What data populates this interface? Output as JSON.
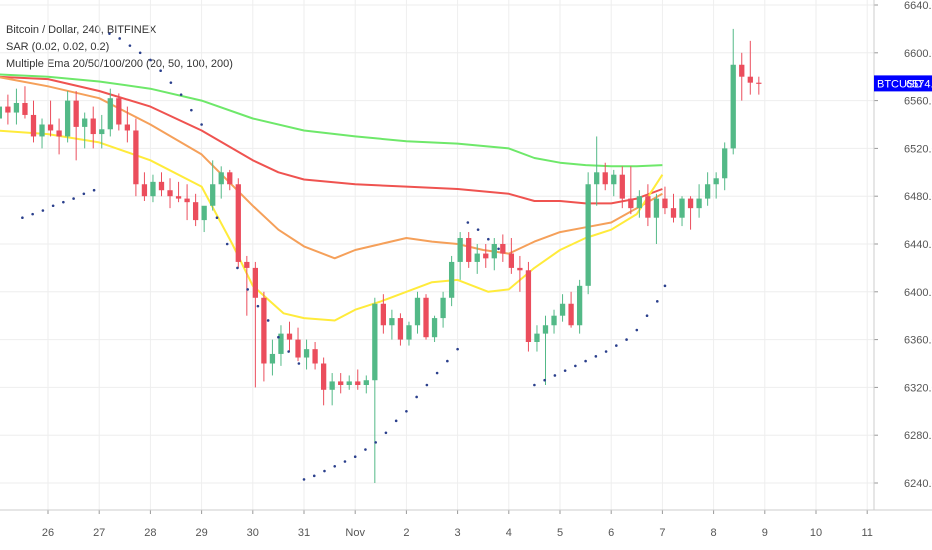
{
  "legend": {
    "symbol_line": "Bitcoin / Dollar, 240, BITFINEX",
    "sar_line": "SAR (0.02, 0.02, 0.2)",
    "ema_line": "Multiple Ema 20/50/100/200 (20, 50, 100, 200)"
  },
  "price_tag": {
    "symbol": "BTCUSD",
    "price": "6574.4",
    "value": 6574.4
  },
  "colors": {
    "up": "#53b987",
    "down": "#eb4d5c",
    "sar": "#2a3f8c",
    "ema20": "#ffeb3b",
    "ema50": "#f5a05a",
    "ema100": "#ef5350",
    "ema200": "#6ee86a",
    "price_tag_bg": "#0000ff",
    "grid": "#eeeeee"
  },
  "chart_data": {
    "type": "candlestick",
    "ylim": [
      6225,
      6645
    ],
    "xlim": [
      25.0,
      11.2
    ],
    "y_ticks": [
      "6640.0",
      "6600.0",
      "6560.0",
      "6520.0",
      "6480.0",
      "6440.0",
      "6400.0",
      "6360.0",
      "6320.0",
      "6280.0",
      "6240.0"
    ],
    "y_tick_values": [
      6640,
      6600,
      6560,
      6520,
      6480,
      6440,
      6400,
      6360,
      6320,
      6280,
      6240
    ],
    "x_ticks": [
      {
        "label": "26",
        "x": 26
      },
      {
        "label": "27",
        "x": 27
      },
      {
        "label": "28",
        "x": 28
      },
      {
        "label": "29",
        "x": 29
      },
      {
        "label": "30",
        "x": 30
      },
      {
        "label": "31",
        "x": 31
      },
      {
        "label": "Nov",
        "x": 32
      },
      {
        "label": "2",
        "x": 33
      },
      {
        "label": "3",
        "x": 34
      },
      {
        "label": "4",
        "x": 35
      },
      {
        "label": "5",
        "x": 36
      },
      {
        "label": "6",
        "x": 37
      },
      {
        "label": "7",
        "x": 38
      },
      {
        "label": "8",
        "x": 39
      },
      {
        "label": "9",
        "x": 40
      },
      {
        "label": "10",
        "x": 41
      },
      {
        "label": "11",
        "x": 42
      }
    ],
    "candles": [
      [
        6545,
        6560,
        6528,
        6555
      ],
      [
        6555,
        6565,
        6540,
        6550
      ],
      [
        6550,
        6570,
        6540,
        6558
      ],
      [
        6558,
        6572,
        6545,
        6548
      ],
      [
        6548,
        6560,
        6525,
        6530
      ],
      [
        6530,
        6545,
        6520,
        6540
      ],
      [
        6540,
        6560,
        6530,
        6535
      ],
      [
        6535,
        6545,
        6515,
        6530
      ],
      [
        6530,
        6568,
        6525,
        6560
      ],
      [
        6560,
        6568,
        6510,
        6538
      ],
      [
        6538,
        6550,
        6520,
        6545
      ],
      [
        6545,
        6555,
        6520,
        6532
      ],
      [
        6532,
        6548,
        6520,
        6536
      ],
      [
        6536,
        6570,
        6530,
        6562
      ],
      [
        6562,
        6566,
        6535,
        6540
      ],
      [
        6540,
        6555,
        6525,
        6535
      ],
      [
        6535,
        6545,
        6480,
        6490
      ],
      [
        6490,
        6500,
        6476,
        6480
      ],
      [
        6480,
        6498,
        6475,
        6492
      ],
      [
        6492,
        6500,
        6480,
        6485
      ],
      [
        6485,
        6495,
        6470,
        6480
      ],
      [
        6480,
        6492,
        6475,
        6478
      ],
      [
        6478,
        6490,
        6460,
        6475
      ],
      [
        6475,
        6482,
        6455,
        6460
      ],
      [
        6460,
        6470,
        6450,
        6472
      ],
      [
        6472,
        6510,
        6468,
        6490
      ],
      [
        6490,
        6505,
        6478,
        6500
      ],
      [
        6500,
        6502,
        6485,
        6490
      ],
      [
        6490,
        6495,
        6420,
        6425
      ],
      [
        6425,
        6430,
        6380,
        6420
      ],
      [
        6420,
        6425,
        6320,
        6395
      ],
      [
        6395,
        6400,
        6325,
        6340
      ],
      [
        6340,
        6360,
        6330,
        6348
      ],
      [
        6348,
        6372,
        6338,
        6365
      ],
      [
        6365,
        6375,
        6350,
        6360
      ],
      [
        6360,
        6370,
        6342,
        6345
      ],
      [
        6345,
        6360,
        6335,
        6352
      ],
      [
        6352,
        6358,
        6335,
        6340
      ],
      [
        6340,
        6345,
        6305,
        6318
      ],
      [
        6318,
        6332,
        6305,
        6325
      ],
      [
        6325,
        6332,
        6315,
        6322
      ],
      [
        6322,
        6330,
        6318,
        6325
      ],
      [
        6325,
        6335,
        6318,
        6322
      ],
      [
        6322,
        6330,
        6315,
        6326
      ],
      [
        6326,
        6395,
        6240,
        6390
      ],
      [
        6390,
        6398,
        6365,
        6372
      ],
      [
        6372,
        6385,
        6360,
        6378
      ],
      [
        6378,
        6382,
        6355,
        6360
      ],
      [
        6360,
        6375,
        6355,
        6372
      ],
      [
        6372,
        6400,
        6365,
        6395
      ],
      [
        6395,
        6398,
        6360,
        6362
      ],
      [
        6362,
        6380,
        6358,
        6378
      ],
      [
        6378,
        6400,
        6370,
        6395
      ],
      [
        6395,
        6430,
        6388,
        6425
      ],
      [
        6425,
        6450,
        6410,
        6445
      ],
      [
        6445,
        6450,
        6420,
        6425
      ],
      [
        6425,
        6440,
        6415,
        6432
      ],
      [
        6432,
        6440,
        6420,
        6428
      ],
      [
        6428,
        6445,
        6418,
        6440
      ],
      [
        6440,
        6448,
        6425,
        6432
      ],
      [
        6432,
        6445,
        6415,
        6420
      ],
      [
        6420,
        6430,
        6400,
        6418
      ],
      [
        6418,
        6425,
        6350,
        6358
      ],
      [
        6358,
        6372,
        6350,
        6365
      ],
      [
        6365,
        6380,
        6322,
        6372
      ],
      [
        6372,
        6385,
        6365,
        6380
      ],
      [
        6380,
        6398,
        6375,
        6390
      ],
      [
        6390,
        6400,
        6370,
        6372
      ],
      [
        6372,
        6410,
        6365,
        6405
      ],
      [
        6405,
        6500,
        6398,
        6490
      ],
      [
        6490,
        6530,
        6472,
        6500
      ],
      [
        6500,
        6508,
        6485,
        6490
      ],
      [
        6490,
        6502,
        6480,
        6498
      ],
      [
        6498,
        6505,
        6470,
        6478
      ],
      [
        6478,
        6505,
        6465,
        6470
      ],
      [
        6470,
        6485,
        6462,
        6480
      ],
      [
        6480,
        6490,
        6455,
        6462
      ],
      [
        6462,
        6482,
        6440,
        6478
      ],
      [
        6478,
        6488,
        6465,
        6470
      ],
      [
        6470,
        6482,
        6458,
        6462
      ],
      [
        6462,
        6480,
        6455,
        6478
      ],
      [
        6478,
        6480,
        6452,
        6470
      ],
      [
        6470,
        6490,
        6462,
        6478
      ],
      [
        6478,
        6500,
        6472,
        6490
      ],
      [
        6490,
        6500,
        6478,
        6495
      ],
      [
        6495,
        6525,
        6485,
        6520
      ],
      [
        6520,
        6620,
        6515,
        6590
      ],
      [
        6590,
        6600,
        6560,
        6580
      ],
      [
        6580,
        6610,
        6565,
        6575
      ],
      [
        6575,
        6580,
        6565,
        6574
      ]
    ],
    "ema20": [
      [
        25.0,
        6535
      ],
      [
        26.0,
        6532
      ],
      [
        27.0,
        6525
      ],
      [
        28.0,
        6510
      ],
      [
        29.0,
        6488
      ],
      [
        29.6,
        6440
      ],
      [
        30.0,
        6405
      ],
      [
        30.6,
        6382
      ],
      [
        31.0,
        6378
      ],
      [
        31.6,
        6376
      ],
      [
        32.0,
        6385
      ],
      [
        32.5,
        6392
      ],
      [
        33.0,
        6400
      ],
      [
        33.5,
        6408
      ],
      [
        34.0,
        6410
      ],
      [
        34.6,
        6400
      ],
      [
        35.0,
        6402
      ],
      [
        35.5,
        6420
      ],
      [
        36.0,
        6435
      ],
      [
        36.5,
        6445
      ],
      [
        37.0,
        6452
      ],
      [
        37.5,
        6465
      ],
      [
        38.0,
        6498
      ]
    ],
    "ema50": [
      [
        25.0,
        6580
      ],
      [
        26.0,
        6572
      ],
      [
        27.0,
        6562
      ],
      [
        28.0,
        6540
      ],
      [
        29.0,
        6515
      ],
      [
        30.0,
        6472
      ],
      [
        30.5,
        6452
      ],
      [
        31.0,
        6438
      ],
      [
        31.6,
        6428
      ],
      [
        32.0,
        6435
      ],
      [
        32.5,
        6440
      ],
      [
        33.0,
        6445
      ],
      [
        33.5,
        6442
      ],
      [
        34.0,
        6440
      ],
      [
        34.5,
        6435
      ],
      [
        35.0,
        6432
      ],
      [
        35.5,
        6442
      ],
      [
        36.0,
        6450
      ],
      [
        36.5,
        6454
      ],
      [
        37.0,
        6458
      ],
      [
        37.5,
        6470
      ],
      [
        38.0,
        6482
      ]
    ],
    "ema100": [
      [
        25.0,
        6580
      ],
      [
        26.0,
        6578
      ],
      [
        27.0,
        6568
      ],
      [
        28.0,
        6555
      ],
      [
        29.0,
        6535
      ],
      [
        30.0,
        6510
      ],
      [
        30.5,
        6500
      ],
      [
        31.0,
        6494
      ],
      [
        32.0,
        6490
      ],
      [
        33.0,
        6488
      ],
      [
        34.0,
        6486
      ],
      [
        35.0,
        6482
      ],
      [
        35.5,
        6476
      ],
      [
        36.0,
        6476
      ],
      [
        36.5,
        6474
      ],
      [
        37.0,
        6474
      ],
      [
        37.5,
        6478
      ],
      [
        38.0,
        6486
      ]
    ],
    "ema200": [
      [
        25.0,
        6582
      ],
      [
        26.0,
        6580
      ],
      [
        27.0,
        6576
      ],
      [
        28.0,
        6570
      ],
      [
        29.0,
        6560
      ],
      [
        30.0,
        6545
      ],
      [
        31.0,
        6535
      ],
      [
        32.0,
        6530
      ],
      [
        33.0,
        6526
      ],
      [
        34.0,
        6524
      ],
      [
        35.0,
        6520
      ],
      [
        35.5,
        6512
      ],
      [
        36.0,
        6508
      ],
      [
        36.5,
        6506
      ],
      [
        37.0,
        6505
      ],
      [
        37.5,
        6505
      ],
      [
        38.0,
        6506
      ]
    ],
    "sar_dots": [
      [
        25.5,
        6462
      ],
      [
        25.7,
        6465
      ],
      [
        25.9,
        6468
      ],
      [
        26.1,
        6472
      ],
      [
        26.3,
        6475
      ],
      [
        26.5,
        6478
      ],
      [
        26.7,
        6482
      ],
      [
        26.9,
        6485
      ],
      [
        27.2,
        6616
      ],
      [
        27.4,
        6612
      ],
      [
        27.6,
        6606
      ],
      [
        27.8,
        6600
      ],
      [
        28.0,
        6594
      ],
      [
        28.2,
        6585
      ],
      [
        28.4,
        6575
      ],
      [
        28.6,
        6565
      ],
      [
        28.8,
        6552
      ],
      [
        29.0,
        6540
      ],
      [
        29.3,
        6462
      ],
      [
        29.5,
        6440
      ],
      [
        29.7,
        6420
      ],
      [
        29.9,
        6402
      ],
      [
        30.1,
        6388
      ],
      [
        30.3,
        6376
      ],
      [
        30.5,
        6362
      ],
      [
        30.7,
        6350
      ],
      [
        30.9,
        6340
      ],
      [
        31.0,
        6243
      ],
      [
        31.2,
        6246
      ],
      [
        31.4,
        6250
      ],
      [
        31.6,
        6254
      ],
      [
        31.8,
        6258
      ],
      [
        32.0,
        6262
      ],
      [
        32.2,
        6268
      ],
      [
        32.4,
        6274
      ],
      [
        32.6,
        6282
      ],
      [
        32.8,
        6292
      ],
      [
        33.0,
        6300
      ],
      [
        33.2,
        6312
      ],
      [
        33.4,
        6322
      ],
      [
        33.6,
        6332
      ],
      [
        33.8,
        6342
      ],
      [
        34.0,
        6352
      ],
      [
        34.2,
        6458
      ],
      [
        34.4,
        6452
      ],
      [
        34.6,
        6444
      ],
      [
        34.8,
        6436
      ],
      [
        35.5,
        6322
      ],
      [
        35.7,
        6326
      ],
      [
        35.9,
        6330
      ],
      [
        36.1,
        6334
      ],
      [
        36.3,
        6338
      ],
      [
        36.5,
        6342
      ],
      [
        36.7,
        6346
      ],
      [
        36.9,
        6350
      ],
      [
        37.1,
        6355
      ],
      [
        37.3,
        6360
      ],
      [
        37.5,
        6368
      ],
      [
        37.7,
        6380
      ],
      [
        37.9,
        6392
      ],
      [
        38.05,
        6405
      ]
    ]
  }
}
